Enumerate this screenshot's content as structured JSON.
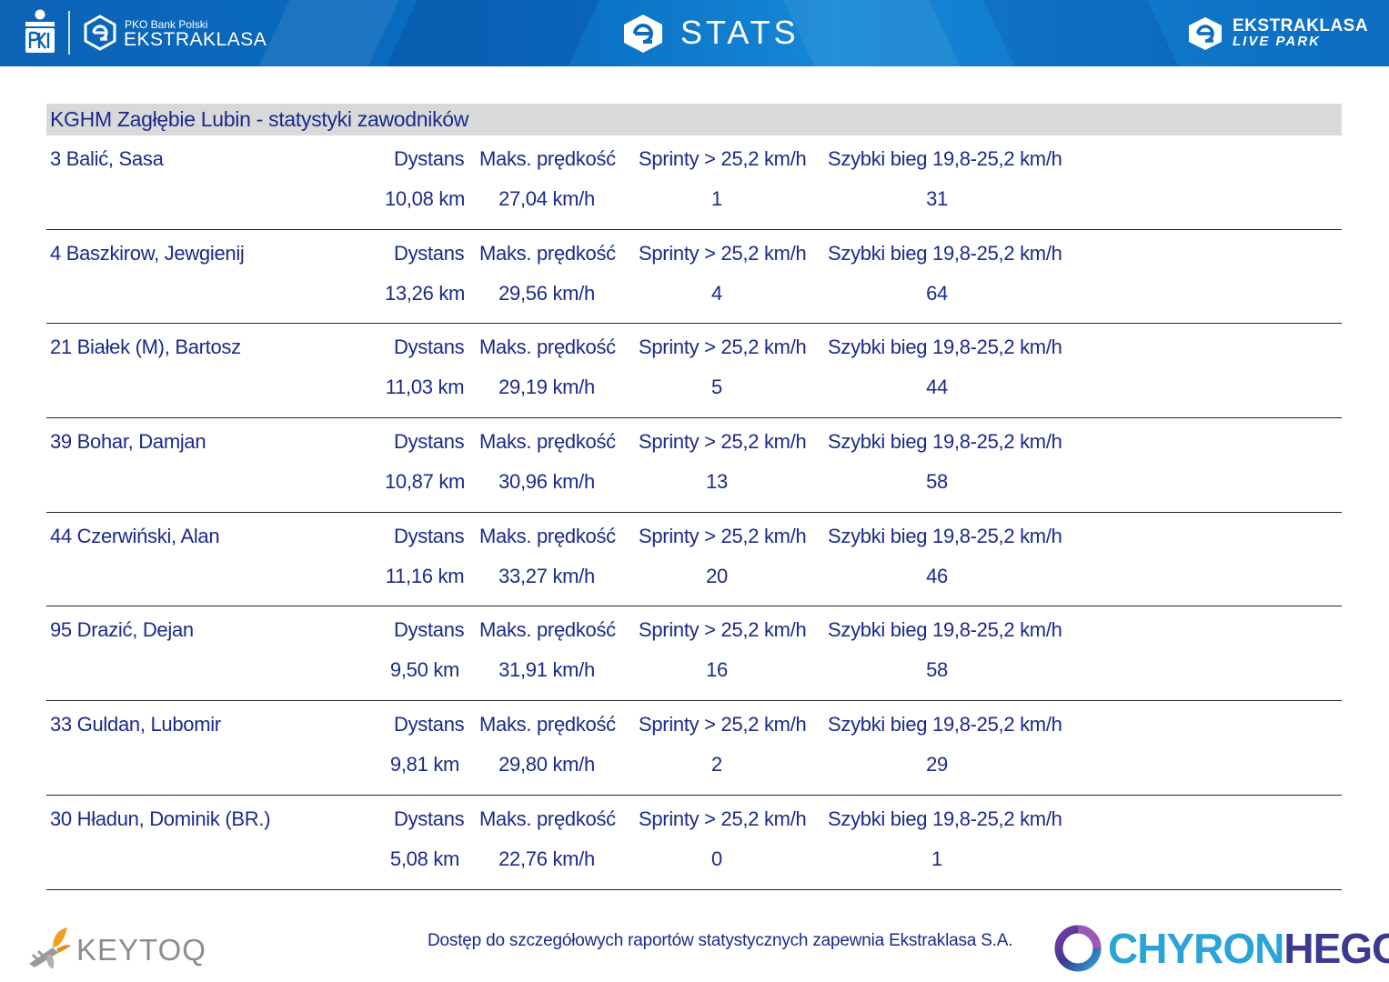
{
  "header": {
    "pko_sub": "PKO Bank Polski",
    "pko_main": "EKSTRAKLASA",
    "stats_title": "STATS",
    "live_park_line1": "EKSTRAKLASA",
    "live_park_line2": "LIVE PARK",
    "colors": {
      "header_bg": "#0b6cc0",
      "text": "#ffffff"
    }
  },
  "team": {
    "title": "KGHM Zagłębie Lubin - statystyki zawodników"
  },
  "column_headers": {
    "distance": "Dystans",
    "max_speed": "Maks. prędkość",
    "sprints": "Sprinty > 25,2 km/h",
    "fast_run": "Szybki bieg 19,8-25,2 km/h"
  },
  "players": [
    {
      "name": "3  Balić, Sasa",
      "distance": "10,08 km",
      "max_speed": "27,04 km/h",
      "sprints": "1",
      "fast_run": "31"
    },
    {
      "name": "4  Baszkirow, Jewgienij",
      "distance": "13,26 km",
      "max_speed": "29,56 km/h",
      "sprints": "4",
      "fast_run": "64"
    },
    {
      "name": "21  Białek (M), Bartosz",
      "distance": "11,03 km",
      "max_speed": "29,19 km/h",
      "sprints": "5",
      "fast_run": "44"
    },
    {
      "name": "39  Bohar, Damjan",
      "distance": "10,87 km",
      "max_speed": "30,96 km/h",
      "sprints": "13",
      "fast_run": "58"
    },
    {
      "name": "44  Czerwiński, Alan",
      "distance": "11,16 km",
      "max_speed": "33,27 km/h",
      "sprints": "20",
      "fast_run": "46"
    },
    {
      "name": "95  Drazić, Dejan",
      "distance": "9,50 km",
      "max_speed": "31,91 km/h",
      "sprints": "16",
      "fast_run": "58"
    },
    {
      "name": "33  Guldan, Lubomir",
      "distance": "9,81 km",
      "max_speed": "29,80 km/h",
      "sprints": "2",
      "fast_run": "29"
    },
    {
      "name": "30  Hładun, Dominik (BR.)",
      "distance": "5,08 km",
      "max_speed": "22,76 km/h",
      "sprints": "0",
      "fast_run": "1"
    }
  ],
  "footer": {
    "keytoq": "KEYTOQ",
    "note": "Dostęp do szczegółowych raportów statystycznych zapewnia Ekstraklasa S.A.",
    "chyron_part1": "CHYRON",
    "chyron_part2": "HEGO"
  },
  "colors": {
    "text_blue": "#1b2a8c",
    "team_bar": "#d9d9d9",
    "chyron_blue": "#2aa3d8",
    "chyron_navy": "#3b3a8f"
  }
}
